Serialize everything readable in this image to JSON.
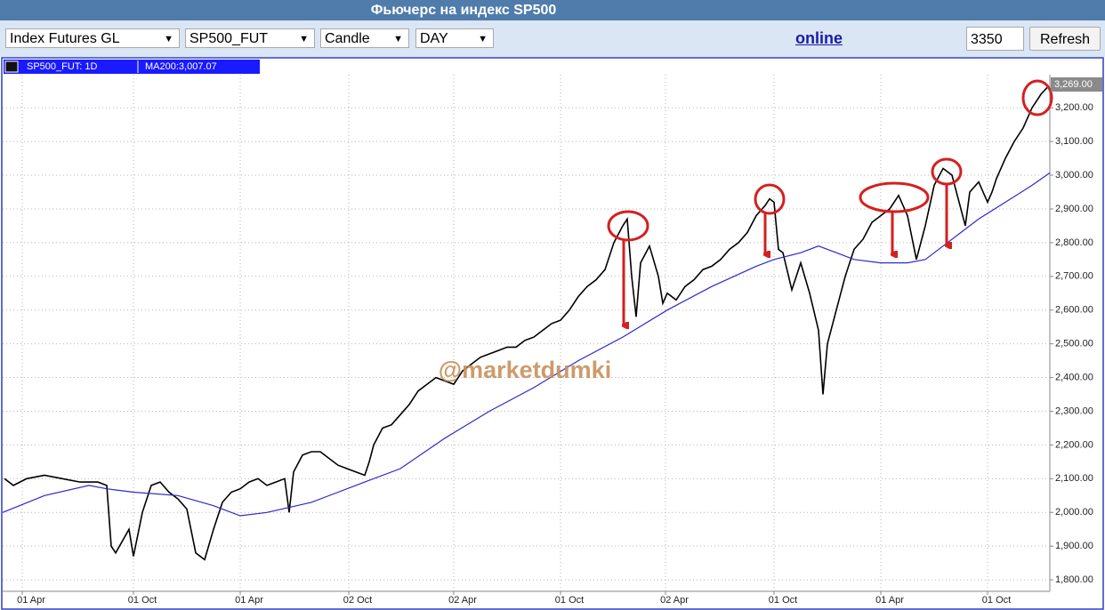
{
  "header": {
    "title": "Фьючерс на индекс SP500"
  },
  "toolbar": {
    "selects": [
      "Index Futures GL",
      "SP500_FUT",
      "Candle",
      "DAY"
    ],
    "link": "online",
    "input": "3350",
    "button": "Refresh"
  },
  "watermark": "@marketdumki",
  "chart_data": {
    "type": "line",
    "series": [
      {
        "name": "SP500_FUT: 1D",
        "color": "#000000",
        "x": [
          2,
          12,
          27,
          47,
          67,
          87,
          107,
          117,
          122,
          127,
          142,
          147,
          157,
          167,
          177,
          187,
          197,
          207,
          217,
          227,
          237,
          247,
          257,
          267,
          277,
          287,
          297,
          307,
          317,
          322,
          327,
          337,
          347,
          357,
          367,
          377,
          387,
          397,
          407,
          412,
          417,
          427,
          437,
          447,
          457,
          467,
          477,
          487,
          497,
          507,
          517,
          527,
          537,
          547,
          557,
          567,
          577,
          587,
          597,
          607,
          617,
          627,
          637,
          647,
          657,
          667,
          677,
          687,
          697,
          702,
          707,
          712,
          717,
          727,
          737,
          742,
          747,
          757,
          767,
          777,
          787,
          797,
          807,
          817,
          827,
          837,
          847,
          857,
          862,
          867,
          872,
          877,
          887,
          897,
          907,
          917,
          922,
          927,
          937,
          947,
          957,
          967,
          977,
          987,
          997,
          1007,
          1017,
          1027,
          1037,
          1047,
          1057,
          1067,
          1077,
          1082,
          1087,
          1097,
          1107,
          1112,
          1117,
          1127,
          1137,
          1147,
          1157,
          1167,
          1174
        ],
        "values": [
          2100,
          2080,
          2100,
          2110,
          2100,
          2090,
          2090,
          2080,
          1900,
          1880,
          1950,
          1870,
          2000,
          2080,
          2090,
          2060,
          2040,
          2010,
          1880,
          1860,
          1950,
          2030,
          2060,
          2070,
          2090,
          2100,
          2080,
          2090,
          2100,
          2000,
          2120,
          2170,
          2180,
          2180,
          2160,
          2140,
          2130,
          2120,
          2110,
          2150,
          2200,
          2250,
          2260,
          2290,
          2320,
          2360,
          2380,
          2400,
          2390,
          2380,
          2420,
          2440,
          2460,
          2470,
          2480,
          2490,
          2490,
          2510,
          2520,
          2540,
          2560,
          2570,
          2600,
          2640,
          2670,
          2690,
          2720,
          2800,
          2850,
          2870,
          2700,
          2580,
          2740,
          2790,
          2700,
          2620,
          2650,
          2630,
          2670,
          2690,
          2720,
          2730,
          2750,
          2780,
          2800,
          2830,
          2880,
          2910,
          2930,
          2920,
          2780,
          2770,
          2660,
          2740,
          2650,
          2540,
          2350,
          2500,
          2600,
          2700,
          2780,
          2810,
          2860,
          2880,
          2900,
          2940,
          2880,
          2750,
          2850,
          2970,
          3020,
          3000,
          2900,
          2850,
          2950,
          2980,
          2920,
          2950,
          2990,
          3050,
          3100,
          3140,
          3200,
          3240,
          3260
        ]
      },
      {
        "name": "MA200:3,007.07",
        "color": "#2a2acc",
        "x": [
          0,
          47,
          97,
          117,
          147,
          197,
          237,
          267,
          297,
          347,
          377,
          407,
          447,
          497,
          547,
          597,
          647,
          697,
          747,
          797,
          847,
          867,
          897,
          917,
          937,
          957,
          987,
          1017,
          1037,
          1057,
          1077,
          1097,
          1127,
          1157,
          1177
        ],
        "values": [
          2000,
          2050,
          2080,
          2070,
          2060,
          2050,
          2020,
          1990,
          2000,
          2030,
          2060,
          2090,
          2130,
          2220,
          2300,
          2370,
          2450,
          2520,
          2600,
          2670,
          2730,
          2750,
          2770,
          2790,
          2770,
          2750,
          2740,
          2740,
          2750,
          2790,
          2830,
          2870,
          2920,
          2970,
          3007
        ]
      }
    ],
    "last_price": {
      "value": 3269,
      "label": "3,269.00"
    },
    "xlim": [
      0,
      1177
    ],
    "xticks": [
      {
        "value": 22,
        "label": "01 Apr"
      },
      {
        "value": 147,
        "label": "01 Oct"
      },
      {
        "value": 267,
        "label": "01 Apr"
      },
      {
        "value": 389,
        "label": "02 Oct"
      },
      {
        "value": 507,
        "label": "02 Apr"
      },
      {
        "value": 627,
        "label": "01 Oct"
      },
      {
        "value": 745,
        "label": "02 Apr"
      },
      {
        "value": 867,
        "label": "01 Oct"
      },
      {
        "value": 987,
        "label": "01 Apr"
      },
      {
        "value": 1107,
        "label": "01 Oct"
      }
    ],
    "ylim": [
      1766,
      3298
    ],
    "yticks": [
      {
        "value": 1800,
        "label": "1,800.00"
      },
      {
        "value": 1900,
        "label": "1,900.00"
      },
      {
        "value": 2000,
        "label": "2,000.00"
      },
      {
        "value": 2100,
        "label": "2,100.00"
      },
      {
        "value": 2200,
        "label": "2,200.00"
      },
      {
        "value": 2300,
        "label": "2,300.00"
      },
      {
        "value": 2400,
        "label": "2,400.00"
      },
      {
        "value": 2500,
        "label": "2,500.00"
      },
      {
        "value": 2600,
        "label": "2,600.00"
      },
      {
        "value": 2700,
        "label": "2,700.00"
      },
      {
        "value": 2800,
        "label": "2,800.00"
      },
      {
        "value": 2900,
        "label": "2,900.00"
      },
      {
        "value": 3000,
        "label": "3,000.00"
      },
      {
        "value": 3100,
        "label": "3,100.00"
      },
      {
        "value": 3200,
        "label": "3,200.00"
      }
    ],
    "grid": true
  }
}
